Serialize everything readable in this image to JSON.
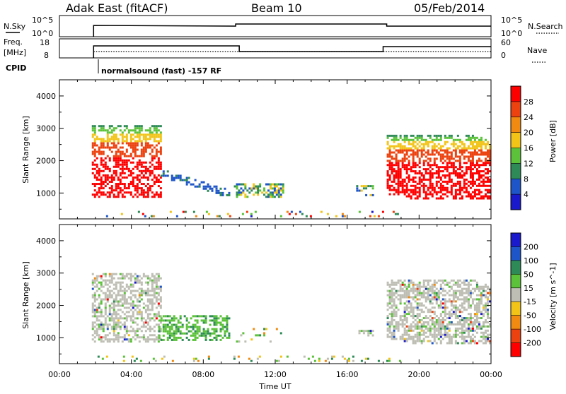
{
  "header": {
    "station": "Adak East (fitACF)",
    "beam": "Beam 10",
    "date": "05/Feb/2014"
  },
  "status_panels": {
    "nsky_label": "N.Sky",
    "nsky_ticks": [
      "10^5",
      "10^0"
    ],
    "nsearch_label": "N.Search",
    "nsearch_ticks": [
      "10^5",
      "10^0"
    ],
    "freq_label_1": "Freq.",
    "freq_label_2": "[MHz]",
    "freq_ticks": [
      "18",
      "8"
    ],
    "nave_label": "Nave",
    "nave_ticks": [
      "60",
      "0"
    ],
    "cpid_label": "CPID",
    "cpid_text": "normalsound (fast) -157 RF"
  },
  "chart_data": {
    "type": "heatmap",
    "time_range_hours": [
      0,
      24
    ],
    "x_ticks": [
      "00:00",
      "04:00",
      "08:00",
      "12:00",
      "16:00",
      "20:00",
      "00:00"
    ],
    "xlabel": "Time UT",
    "ylabel": "Slant Range [km]",
    "y_ticks": [
      "1000",
      "2000",
      "3000",
      "4000"
    ],
    "ylim_km": [
      200,
      4500
    ],
    "power": {
      "label": "Power [dB]",
      "levels": [
        "4",
        "8",
        "12",
        "16",
        "20",
        "24",
        "28"
      ],
      "colors": [
        "#1a1acc",
        "#1e55c8",
        "#2e8b57",
        "#5cc23a",
        "#f2c418",
        "#f08a10",
        "#ec4210",
        "#ff0000"
      ],
      "regions": [
        {
          "t": [
            1.8,
            5.7
          ],
          "r": [
            850,
            3100
          ],
          "level": "high"
        },
        {
          "t": [
            5.5,
            9.5
          ],
          "r": [
            900,
            1700
          ],
          "level": "low"
        },
        {
          "t": [
            9.7,
            12.5
          ],
          "r": [
            850,
            1300
          ],
          "level": "low-mid"
        },
        {
          "t": [
            16.5,
            17.5
          ],
          "r": [
            900,
            1250
          ],
          "level": "low-mid"
        },
        {
          "t": [
            18.2,
            24
          ],
          "r": [
            800,
            2800
          ],
          "level": "high"
        },
        {
          "t": [
            2,
            19
          ],
          "r": [
            250,
            450
          ],
          "level": "mixed"
        }
      ]
    },
    "velocity": {
      "label": "Velocity [m s^-1]",
      "levels": [
        "200",
        "100",
        "50",
        "15",
        "-15",
        "-50",
        "-100",
        "-200"
      ],
      "colors": [
        "#1a1acc",
        "#1e55c8",
        "#2e8b57",
        "#5cc23a",
        "#bebeb4",
        "#f2c418",
        "#f08a10",
        "#ec4210",
        "#ff0000"
      ],
      "regions": [
        {
          "t": [
            1.8,
            5.7
          ],
          "r": [
            850,
            3000
          ],
          "level": "ground"
        },
        {
          "t": [
            5.5,
            9.5
          ],
          "r": [
            900,
            1700
          ],
          "level": "positive-low"
        },
        {
          "t": [
            9.7,
            12.5
          ],
          "r": [
            850,
            1300
          ],
          "level": "mixed"
        },
        {
          "t": [
            16.5,
            17.5
          ],
          "r": [
            900,
            1250
          ],
          "level": "ground"
        },
        {
          "t": [
            18.2,
            24
          ],
          "r": [
            800,
            2800
          ],
          "level": "ground"
        },
        {
          "t": [
            2,
            19
          ],
          "r": [
            250,
            450
          ],
          "level": "mixed"
        }
      ]
    }
  }
}
